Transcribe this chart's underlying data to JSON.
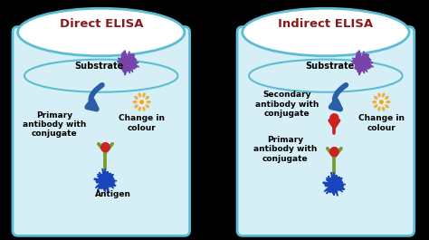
{
  "background": "#000000",
  "well_bg": "#d6eef5",
  "well_top_bg": "#ffffff",
  "well_border": "#5bbdd4",
  "title_color": "#8b1a1a",
  "label_color": "#000000",
  "arrow_color": "#2a5fa8",
  "substrate_color": "#7744aa",
  "starburst_color": "#f5a623",
  "antigen_color": "#1a44bb",
  "antibody_stem_color": "#7a9a2a",
  "antibody_head_color": "#cc2222",
  "secondary_stem_color": "#cc2222",
  "secondary_head_color": "#cc2222",
  "direct_title": "Direct ELISA",
  "indirect_title": "Indirect ELISA",
  "label_substrate": "Substrate",
  "label_change": "Change in\ncolour",
  "label_primary_direct": "Primary\nantibody with\nconjugate",
  "label_antigen": "Antigen",
  "label_primary_indirect": "Primary\nantibody with\nconjugate",
  "label_secondary": "Secondary\nantibody with\nconjugate"
}
